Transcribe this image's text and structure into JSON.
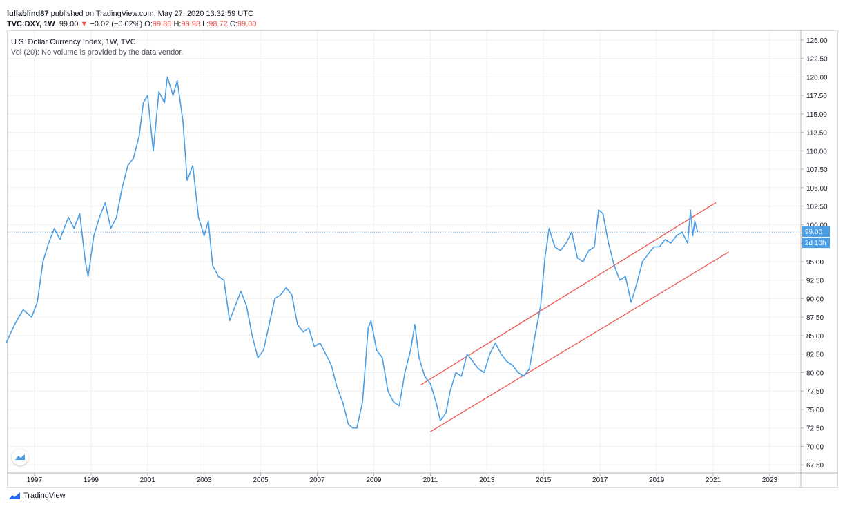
{
  "header": {
    "author": "lullablind87",
    "published_text": " published on TradingView.com, May 27, 2020 13:32:59 UTC",
    "symbol": "TVC:DXY, 1W",
    "last": "99.00",
    "arrow": "▼",
    "change": "−0.02 (−0.02%)",
    "o_label": "O:",
    "o_value": "99.80",
    "h_label": "H:",
    "h_value": "99.98",
    "l_label": "L:",
    "l_value": "98.72",
    "c_label": "C:",
    "c_value": "99.00"
  },
  "legend": {
    "line1": "U.S. Dollar Currency Index, 1W, TVC",
    "line2": "Vol (20): No volume is provided by the data vendor."
  },
  "footer": {
    "brand": "TradingView"
  },
  "colors": {
    "series": "#4a9ee6",
    "trend": "#ef5350",
    "grid": "#eef0f3",
    "price_badge": "#4a9ee6"
  },
  "chart_data": {
    "type": "line",
    "title": "U.S. Dollar Currency Index, 1W, TVC",
    "x_ticks": [
      "1997",
      "1999",
      "2001",
      "2003",
      "2005",
      "2007",
      "2009",
      "2011",
      "2013",
      "2015",
      "2017",
      "2019",
      "2021",
      "2023"
    ],
    "x_tick_values": [
      1997,
      1999,
      2001,
      2003,
      2005,
      2007,
      2009,
      2011,
      2013,
      2015,
      2017,
      2019,
      2021,
      2023
    ],
    "y_ticks": [
      "67.50",
      "70.00",
      "72.50",
      "75.00",
      "77.50",
      "80.00",
      "82.50",
      "85.00",
      "87.50",
      "90.00",
      "92.50",
      "95.00",
      "97.50",
      "100.00",
      "102.50",
      "105.00",
      "107.50",
      "110.00",
      "112.50",
      "115.00",
      "117.50",
      "120.00",
      "122.50",
      "125.00"
    ],
    "xlim": [
      1996.05,
      2024.1
    ],
    "ylim": [
      66.4,
      126.2
    ],
    "grid": true,
    "current_price": 99.0,
    "current_price_label": "99.00",
    "countdown_label": "2d 10h",
    "series": [
      {
        "x": [
          1996.0,
          1996.3,
          1996.6,
          1996.9,
          1997.1,
          1997.3,
          1997.5,
          1997.7,
          1997.9,
          1998.2,
          1998.4,
          1998.6,
          1998.8,
          1998.9,
          1999.1,
          1999.3,
          1999.5,
          1999.7,
          1999.9,
          2000.1,
          2000.3,
          2000.5,
          2000.7,
          2000.85,
          2001.0,
          2001.2,
          2001.4,
          2001.6,
          2001.7,
          2001.9,
          2002.05,
          2002.25,
          2002.4,
          2002.6,
          2002.8,
          2003.0,
          2003.15,
          2003.3,
          2003.5,
          2003.7,
          2003.9,
          2004.1,
          2004.3,
          2004.5,
          2004.7,
          2004.9,
          2005.1,
          2005.3,
          2005.5,
          2005.7,
          2005.9,
          2006.1,
          2006.3,
          2006.5,
          2006.7,
          2006.9,
          2007.1,
          2007.3,
          2007.5,
          2007.7,
          2007.9,
          2008.1,
          2008.25,
          2008.4,
          2008.6,
          2008.8,
          2008.9,
          2009.1,
          2009.3,
          2009.5,
          2009.7,
          2009.9,
          2010.1,
          2010.3,
          2010.45,
          2010.6,
          2010.8,
          2011.0,
          2011.2,
          2011.35,
          2011.55,
          2011.7,
          2011.9,
          2012.1,
          2012.3,
          2012.5,
          2012.7,
          2012.9,
          2013.1,
          2013.3,
          2013.5,
          2013.7,
          2013.9,
          2014.1,
          2014.3,
          2014.5,
          2014.7,
          2014.9,
          2015.05,
          2015.2,
          2015.4,
          2015.6,
          2015.8,
          2016.0,
          2016.2,
          2016.4,
          2016.6,
          2016.8,
          2016.95,
          2017.1,
          2017.3,
          2017.5,
          2017.7,
          2017.9,
          2018.1,
          2018.3,
          2018.5,
          2018.7,
          2018.9,
          2019.1,
          2019.3,
          2019.5,
          2019.7,
          2019.9,
          2020.1,
          2020.2,
          2020.28,
          2020.35,
          2020.45
        ],
        "y": [
          84.0,
          86.5,
          88.5,
          87.5,
          89.5,
          95.0,
          97.5,
          99.5,
          98.0,
          101.0,
          99.5,
          101.5,
          95.0,
          93.0,
          98.5,
          101.0,
          103.0,
          99.5,
          101.0,
          105.0,
          108.0,
          109.0,
          112.0,
          116.5,
          117.5,
          110.0,
          118.0,
          116.5,
          120.0,
          117.5,
          119.5,
          114.0,
          106.0,
          108.0,
          101.0,
          98.5,
          100.5,
          94.5,
          93.0,
          92.5,
          87.0,
          89.0,
          91.0,
          89.0,
          85.0,
          82.0,
          83.0,
          86.5,
          90.0,
          90.5,
          91.5,
          90.5,
          86.5,
          85.5,
          86.0,
          83.5,
          84.0,
          82.5,
          81.0,
          78.0,
          76.0,
          73.0,
          72.5,
          72.5,
          76.0,
          86.0,
          87.0,
          83.0,
          82.0,
          77.5,
          76.0,
          75.5,
          80.0,
          83.0,
          86.5,
          82.0,
          79.5,
          78.5,
          76.0,
          73.5,
          74.5,
          77.5,
          80.0,
          79.5,
          82.5,
          81.5,
          80.5,
          80.0,
          82.5,
          84.0,
          82.5,
          81.5,
          81.0,
          80.0,
          79.5,
          80.5,
          85.0,
          89.0,
          95.5,
          99.5,
          97.0,
          96.5,
          97.5,
          99.0,
          95.5,
          95.0,
          96.5,
          97.0,
          102.0,
          101.5,
          97.5,
          94.5,
          92.5,
          93.0,
          89.5,
          92.0,
          95.0,
          96.0,
          97.0,
          97.0,
          98.0,
          97.5,
          98.5,
          99.0,
          97.5,
          102.0,
          98.5,
          100.5,
          99.0
        ]
      }
    ],
    "trendlines": [
      {
        "x": [
          2010.65,
          2021.1
        ],
        "y": [
          78.3,
          103.0
        ]
      },
      {
        "x": [
          2011.0,
          2021.55
        ],
        "y": [
          72.0,
          96.3
        ]
      }
    ]
  }
}
